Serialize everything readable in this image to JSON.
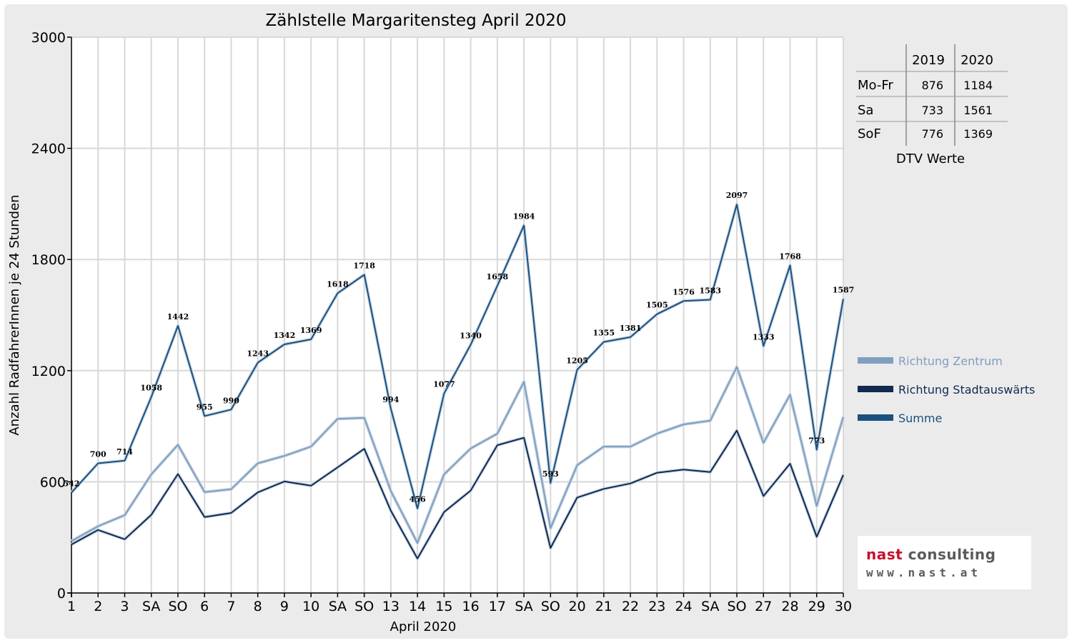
{
  "chart_data": {
    "type": "line",
    "title": "Zählstelle Margaritensteg April 2020",
    "xlabel": "April 2020",
    "ylabel": "Anzahl RadfahrerInnen je 24 Stunden",
    "ylim": [
      0,
      3000
    ],
    "yticks": [
      "0",
      "600",
      "1200",
      "1800",
      "2400",
      "3000"
    ],
    "grid": true,
    "legend_position": "right",
    "categories": [
      "1",
      "2",
      "3",
      "SA",
      "SO",
      "6",
      "7",
      "8",
      "9",
      "10",
      "SA",
      "SO",
      "13",
      "14",
      "15",
      "16",
      "17",
      "SA",
      "SO",
      "20",
      "21",
      "22",
      "23",
      "24",
      "SA",
      "SO",
      "27",
      "28",
      "29",
      "30"
    ],
    "category_colors": [
      "#000000",
      "#000000",
      "#000000",
      "#000000",
      "#e00000",
      "#000000",
      "#000000",
      "#000000",
      "#000000",
      "#000000",
      "#000000",
      "#e00000",
      "#e00000",
      "#000000",
      "#000000",
      "#000000",
      "#000000",
      "#000000",
      "#e00000",
      "#000000",
      "#000000",
      "#000000",
      "#000000",
      "#000000",
      "#000000",
      "#e00000",
      "#000000",
      "#000000",
      "#000000",
      "#000000"
    ],
    "series": [
      {
        "name": "Richtung Zentrum",
        "color": "#7f9fc0",
        "values": [
          280,
          360,
          420,
          640,
          800,
          545,
          560,
          700,
          740,
          790,
          940,
          945,
          550,
          270,
          640,
          780,
          860,
          1140,
          350,
          690,
          790,
          790,
          860,
          910,
          930,
          1220,
          810,
          1070,
          470,
          950
        ]
      },
      {
        "name": "Richtung Stadtauswärts",
        "color": "#102a50",
        "values": [
          262,
          340,
          290,
          422,
          642,
          410,
          432,
          543,
          602,
          579,
          678,
          778,
          444,
          186,
          437,
          553,
          798,
          838,
          243,
          515,
          562,
          591,
          649,
          666,
          653,
          877,
          523,
          698,
          303,
          637
        ]
      },
      {
        "name": "Summe",
        "color": "#1a5180",
        "values": [
          542,
          700,
          714,
          1058,
          1442,
          955,
          990,
          1243,
          1342,
          1369,
          1618,
          1718,
          994,
          456,
          1077,
          1340,
          1658,
          1984,
          593,
          1205,
          1355,
          1381,
          1505,
          1576,
          1583,
          2097,
          1333,
          1768,
          773,
          1587
        ]
      }
    ],
    "data_labels": [
      "542",
      "700",
      "714",
      "1058",
      "1442",
      "955",
      "990",
      "1243",
      "1342",
      "1369",
      "1618",
      "1718",
      "994",
      "456",
      "1077",
      "1340",
      "1658",
      "1984",
      "593",
      "1205",
      "1355",
      "1381",
      "1505",
      "1576",
      "1583",
      "2097",
      "1333",
      "1768",
      "773",
      "1587"
    ]
  },
  "dtv_table": {
    "headers": [
      "",
      "2019",
      "2020"
    ],
    "rows": [
      {
        "label": "Mo-Fr",
        "v2019": "876",
        "v2020": "1184"
      },
      {
        "label": "Sa",
        "v2019": "733",
        "v2020": "1561"
      },
      {
        "label": "SoF",
        "v2019": "776",
        "v2020": "1369"
      }
    ],
    "caption": "DTV Werte"
  },
  "logo": {
    "name_part1": "nast",
    "name_part2": " consulting",
    "url": "www.nast.at",
    "accent_color": "#c8102e"
  }
}
